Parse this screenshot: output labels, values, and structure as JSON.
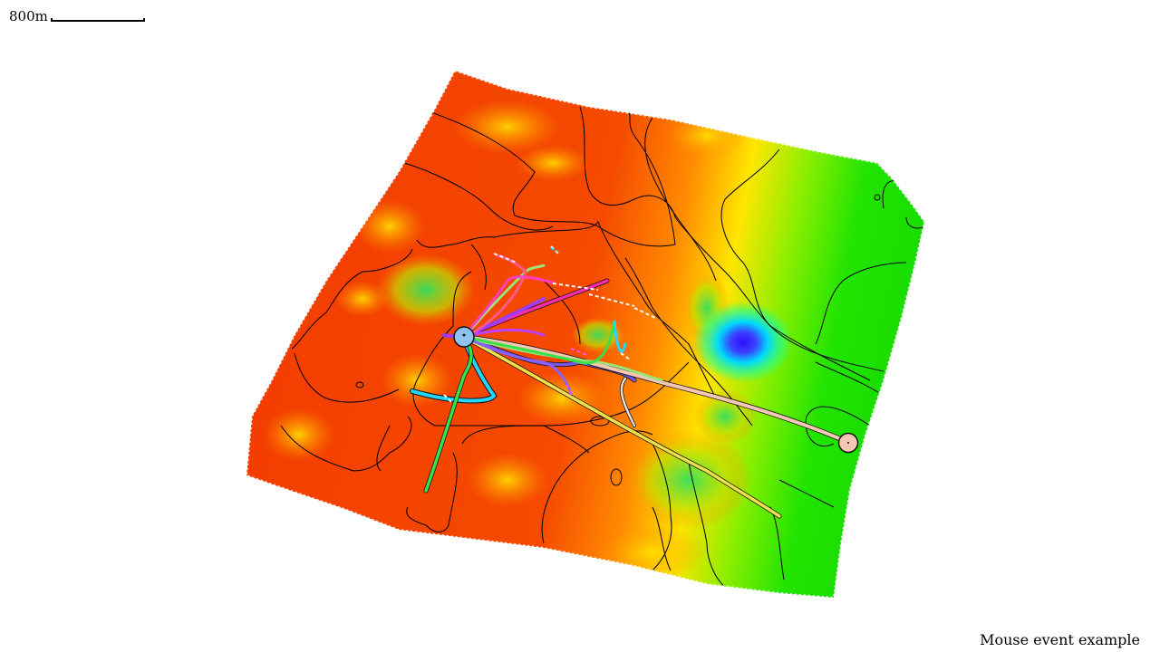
{
  "scale_bar": {
    "label": "800m"
  },
  "caption": "Mouse event example",
  "colors": {
    "terrain_low": "#f23a00",
    "terrain_mid": "#ff8a00",
    "terrain_yellow": "#ffee00",
    "terrain_green": "#1ee000",
    "terrain_cyan": "#00e6ff",
    "terrain_blue": "#2a1cff",
    "contour": "#000000",
    "wellhead_left": "#8ec3f0",
    "wellhead_right": "#f4c8b4"
  },
  "well_colors": [
    "#22d6ff",
    "#3ae04a",
    "#ff2ea8",
    "#7a55e6",
    "#f0e04a",
    "#ff9bd0",
    "#f4c8b4",
    "#9ee37a",
    "#d4b6ff"
  ]
}
